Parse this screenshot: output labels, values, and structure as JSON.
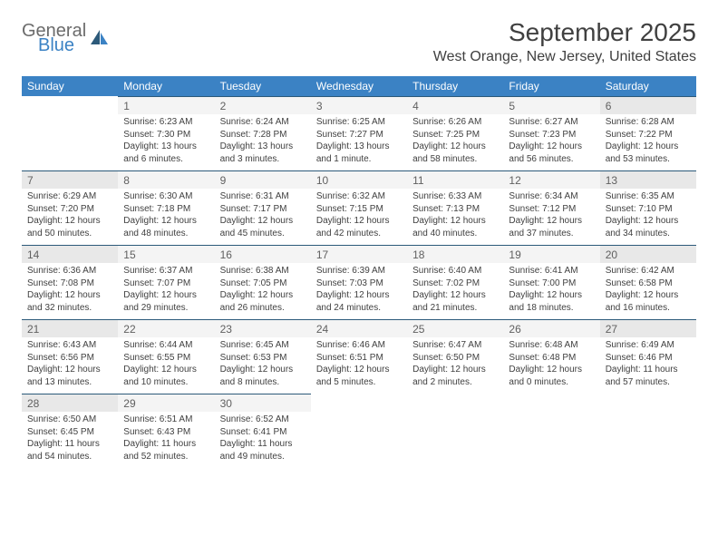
{
  "logo": {
    "text1": "General",
    "text2": "Blue",
    "icon_color": "#2c5a7a",
    "text1_color": "#6b6b6b",
    "text2_color": "#3b82c4"
  },
  "title": "September 2025",
  "location": "West Orange, New Jersey, United States",
  "colors": {
    "header_bg": "#3b82c4",
    "header_text": "#ffffff",
    "border_top": "#2c5a7a",
    "daybar_bg": "#f4f4f4",
    "daybar_weekend_bg": "#e8e8e8",
    "text": "#404040"
  },
  "weekdays": [
    "Sunday",
    "Monday",
    "Tuesday",
    "Wednesday",
    "Thursday",
    "Friday",
    "Saturday"
  ],
  "first_weekday_index": 1,
  "days": [
    {
      "n": 1,
      "sunrise": "6:23 AM",
      "sunset": "7:30 PM",
      "daylight": "13 hours and 6 minutes."
    },
    {
      "n": 2,
      "sunrise": "6:24 AM",
      "sunset": "7:28 PM",
      "daylight": "13 hours and 3 minutes."
    },
    {
      "n": 3,
      "sunrise": "6:25 AM",
      "sunset": "7:27 PM",
      "daylight": "13 hours and 1 minute."
    },
    {
      "n": 4,
      "sunrise": "6:26 AM",
      "sunset": "7:25 PM",
      "daylight": "12 hours and 58 minutes."
    },
    {
      "n": 5,
      "sunrise": "6:27 AM",
      "sunset": "7:23 PM",
      "daylight": "12 hours and 56 minutes."
    },
    {
      "n": 6,
      "sunrise": "6:28 AM",
      "sunset": "7:22 PM",
      "daylight": "12 hours and 53 minutes."
    },
    {
      "n": 7,
      "sunrise": "6:29 AM",
      "sunset": "7:20 PM",
      "daylight": "12 hours and 50 minutes."
    },
    {
      "n": 8,
      "sunrise": "6:30 AM",
      "sunset": "7:18 PM",
      "daylight": "12 hours and 48 minutes."
    },
    {
      "n": 9,
      "sunrise": "6:31 AM",
      "sunset": "7:17 PM",
      "daylight": "12 hours and 45 minutes."
    },
    {
      "n": 10,
      "sunrise": "6:32 AM",
      "sunset": "7:15 PM",
      "daylight": "12 hours and 42 minutes."
    },
    {
      "n": 11,
      "sunrise": "6:33 AM",
      "sunset": "7:13 PM",
      "daylight": "12 hours and 40 minutes."
    },
    {
      "n": 12,
      "sunrise": "6:34 AM",
      "sunset": "7:12 PM",
      "daylight": "12 hours and 37 minutes."
    },
    {
      "n": 13,
      "sunrise": "6:35 AM",
      "sunset": "7:10 PM",
      "daylight": "12 hours and 34 minutes."
    },
    {
      "n": 14,
      "sunrise": "6:36 AM",
      "sunset": "7:08 PM",
      "daylight": "12 hours and 32 minutes."
    },
    {
      "n": 15,
      "sunrise": "6:37 AM",
      "sunset": "7:07 PM",
      "daylight": "12 hours and 29 minutes."
    },
    {
      "n": 16,
      "sunrise": "6:38 AM",
      "sunset": "7:05 PM",
      "daylight": "12 hours and 26 minutes."
    },
    {
      "n": 17,
      "sunrise": "6:39 AM",
      "sunset": "7:03 PM",
      "daylight": "12 hours and 24 minutes."
    },
    {
      "n": 18,
      "sunrise": "6:40 AM",
      "sunset": "7:02 PM",
      "daylight": "12 hours and 21 minutes."
    },
    {
      "n": 19,
      "sunrise": "6:41 AM",
      "sunset": "7:00 PM",
      "daylight": "12 hours and 18 minutes."
    },
    {
      "n": 20,
      "sunrise": "6:42 AM",
      "sunset": "6:58 PM",
      "daylight": "12 hours and 16 minutes."
    },
    {
      "n": 21,
      "sunrise": "6:43 AM",
      "sunset": "6:56 PM",
      "daylight": "12 hours and 13 minutes."
    },
    {
      "n": 22,
      "sunrise": "6:44 AM",
      "sunset": "6:55 PM",
      "daylight": "12 hours and 10 minutes."
    },
    {
      "n": 23,
      "sunrise": "6:45 AM",
      "sunset": "6:53 PM",
      "daylight": "12 hours and 8 minutes."
    },
    {
      "n": 24,
      "sunrise": "6:46 AM",
      "sunset": "6:51 PM",
      "daylight": "12 hours and 5 minutes."
    },
    {
      "n": 25,
      "sunrise": "6:47 AM",
      "sunset": "6:50 PM",
      "daylight": "12 hours and 2 minutes."
    },
    {
      "n": 26,
      "sunrise": "6:48 AM",
      "sunset": "6:48 PM",
      "daylight": "12 hours and 0 minutes."
    },
    {
      "n": 27,
      "sunrise": "6:49 AM",
      "sunset": "6:46 PM",
      "daylight": "11 hours and 57 minutes."
    },
    {
      "n": 28,
      "sunrise": "6:50 AM",
      "sunset": "6:45 PM",
      "daylight": "11 hours and 54 minutes."
    },
    {
      "n": 29,
      "sunrise": "6:51 AM",
      "sunset": "6:43 PM",
      "daylight": "11 hours and 52 minutes."
    },
    {
      "n": 30,
      "sunrise": "6:52 AM",
      "sunset": "6:41 PM",
      "daylight": "11 hours and 49 minutes."
    }
  ],
  "labels": {
    "sunrise": "Sunrise:",
    "sunset": "Sunset:",
    "daylight": "Daylight:"
  }
}
